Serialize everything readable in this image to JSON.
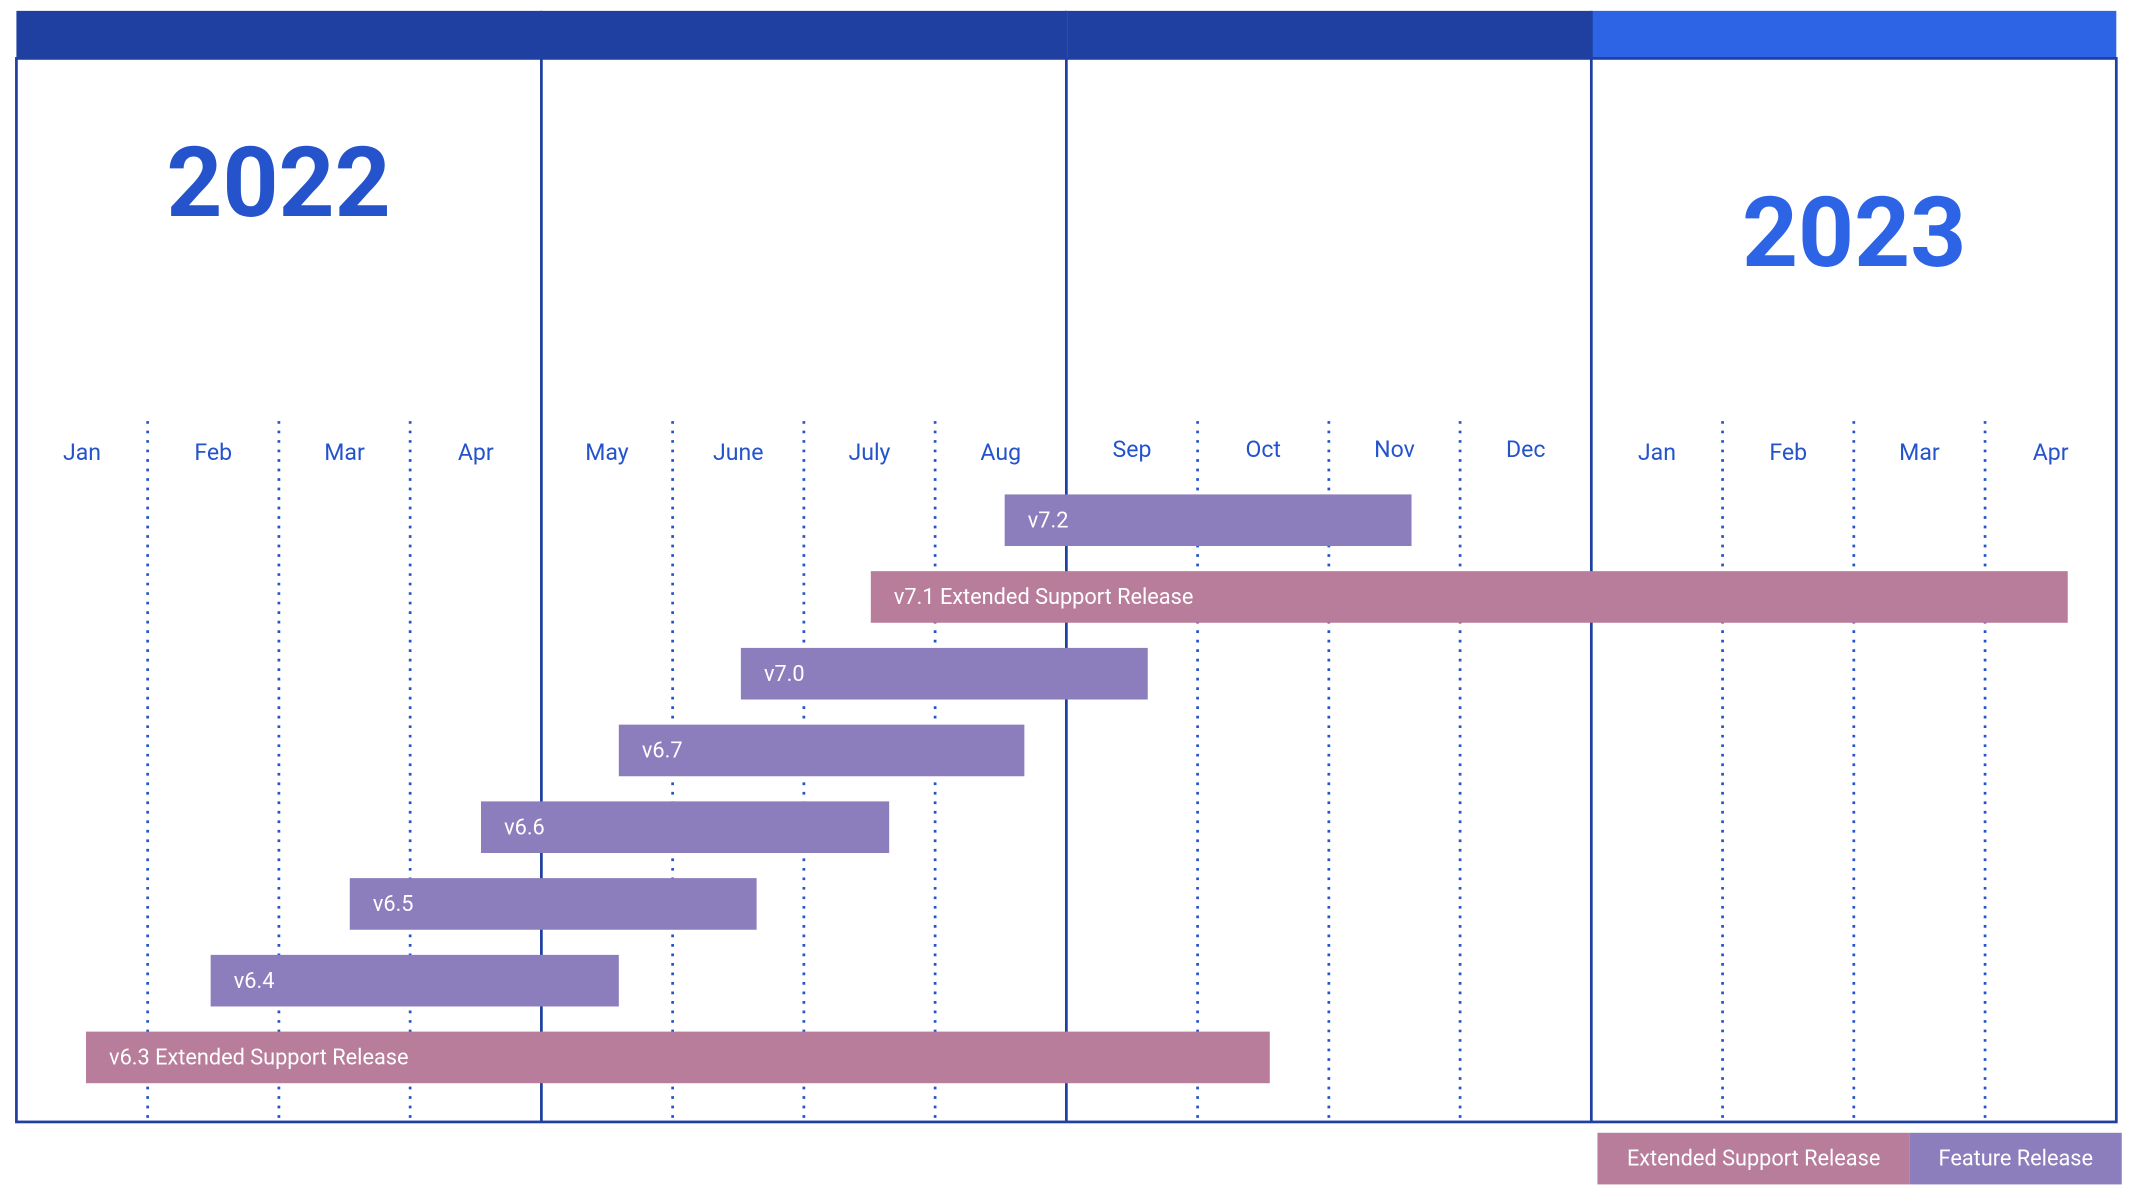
{
  "years": [
    {
      "label": "2022"
    },
    {
      "label": "2023"
    }
  ],
  "months": [
    "Jan",
    "Feb",
    "Mar",
    "Apr",
    "May",
    "June",
    "July",
    "Aug",
    "Sep",
    "Oct",
    "Nov",
    "Dec",
    "Jan",
    "Feb",
    "Mar",
    "Apr"
  ],
  "releases": [
    {
      "label": "v7.2",
      "type": "feature",
      "start": 7.53,
      "end": 10.63
    },
    {
      "label": "v7.1 Extended Support Release",
      "type": "extended",
      "start": 6.51,
      "end": 15.63
    },
    {
      "label": "v7.0",
      "type": "feature",
      "start": 5.52,
      "end": 8.62
    },
    {
      "label": "v6.7",
      "type": "feature",
      "start": 4.59,
      "end": 7.68
    },
    {
      "label": "v6.6",
      "type": "feature",
      "start": 3.54,
      "end": 6.65
    },
    {
      "label": "v6.5",
      "type": "feature",
      "start": 2.54,
      "end": 5.64
    },
    {
      "label": "v6.4",
      "type": "feature",
      "start": 1.48,
      "end": 4.59
    },
    {
      "label": "v6.3 Extended Support Release",
      "type": "extended",
      "start": 0.53,
      "end": 9.55
    }
  ],
  "legend": [
    {
      "label": "Extended Support Release",
      "type": "extended"
    },
    {
      "label": "Feature Release",
      "type": "feature"
    }
  ],
  "colors": {
    "extended": "#b87d9b",
    "feature": "#8c7dbd"
  }
}
